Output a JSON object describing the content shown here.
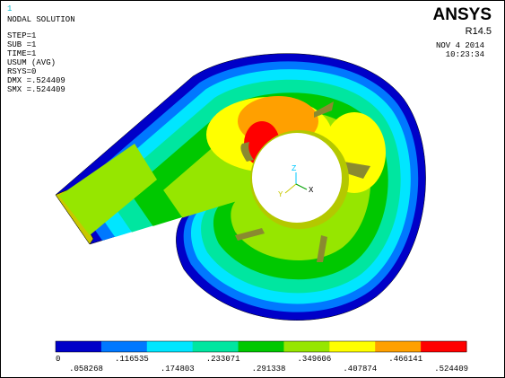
{
  "window_number": "1",
  "info": {
    "title": "NODAL SOLUTION",
    "lines": [
      "STEP=1",
      "SUB =1",
      "TIME=1",
      "USUM      (AVG)",
      "RSYS=0",
      "DMX =.524409",
      "SMX =.524409"
    ]
  },
  "header": {
    "brand": "ANSYS",
    "version": "R14.5",
    "date": "NOV  4 2014",
    "time": "10:23:34"
  },
  "triad": {
    "z": "Z",
    "y": "Y",
    "x": "X"
  },
  "legend": {
    "colors": [
      "#0000c8",
      "#0078ff",
      "#00e6ff",
      "#00e6a0",
      "#00c800",
      "#96e600",
      "#ffff00",
      "#ffa000",
      "#ff0000"
    ],
    "labels": [
      "0",
      ".058268",
      ".116535",
      ".174803",
      ".233071",
      ".291338",
      ".349606",
      ".407874",
      ".466141",
      ".524409"
    ]
  }
}
